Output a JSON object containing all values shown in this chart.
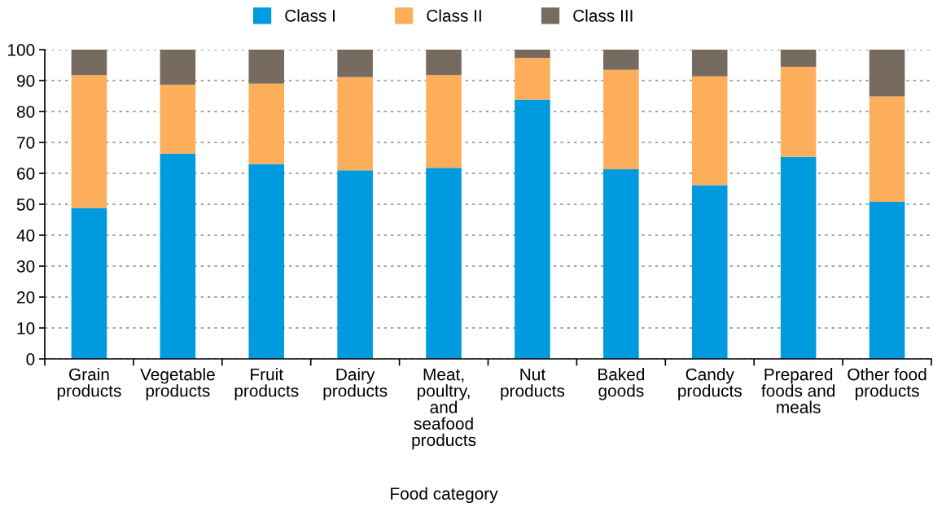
{
  "chart_data": {
    "type": "bar",
    "stacked": true,
    "xlabel": "Food category",
    "categories": [
      "Grain\nproducts",
      "Vegetable\nproducts",
      "Fruit\nproducts",
      "Dairy\nproducts",
      "Meat,\npoultry,\nand\nseafood\nproducts",
      "Nut\nproducts",
      "Baked\ngoods",
      "Candy\nproducts",
      "Prepared\nfoods and\nmeals",
      "Other food\nproducts"
    ],
    "series": [
      {
        "name": "Class I",
        "color": "#009ade",
        "values": [
          48.8,
          66.4,
          63.0,
          61.0,
          61.8,
          83.8,
          61.3,
          56.2,
          65.3,
          50.8
        ]
      },
      {
        "name": "Class II",
        "color": "#fdae5a",
        "values": [
          43.0,
          22.3,
          26.0,
          30.1,
          30.0,
          13.6,
          32.2,
          35.2,
          29.2,
          34.1
        ]
      },
      {
        "name": "Class III",
        "color": "#776b5f",
        "values": [
          8.2,
          11.3,
          11.0,
          8.9,
          8.2,
          2.6,
          6.5,
          8.6,
          5.5,
          15.1
        ]
      }
    ],
    "ylim": [
      0,
      100
    ],
    "yticks": [
      0,
      10,
      20,
      30,
      40,
      50,
      60,
      70,
      80,
      90,
      100
    ],
    "grid": "y",
    "legend": "top"
  }
}
